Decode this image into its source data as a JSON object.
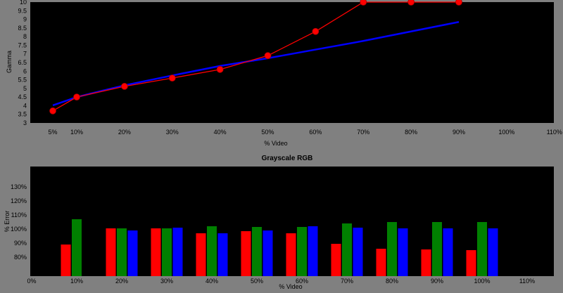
{
  "chart_data": [
    {
      "type": "line",
      "title": "",
      "xlabel": "% Video",
      "ylabel": "Gamma",
      "ylim": [
        3,
        10
      ],
      "yticks": [
        "3",
        "3.5",
        "4",
        "4.5",
        "5",
        "5.5",
        "6",
        "6.5",
        "7",
        "7.5",
        "8",
        "8.5",
        "9",
        "9.5",
        "10"
      ],
      "xtick_labels": [
        "5%",
        "10%",
        "20%",
        "30%",
        "40%",
        "50%",
        "60%",
        "70%",
        "80%",
        "90%",
        "100%",
        "110%"
      ],
      "grid": false,
      "series": [
        {
          "color": "#0000ff",
          "x": [
            5,
            10,
            20,
            30,
            40,
            50,
            60,
            70,
            80,
            90
          ],
          "y": [
            4.02,
            4.5,
            5.18,
            5.75,
            6.3,
            6.75,
            7.25,
            7.75,
            8.3,
            8.85
          ]
        },
        {
          "color": "#ff0000",
          "markers": true,
          "x": [
            5,
            10,
            20,
            30,
            40,
            50,
            60,
            70,
            80,
            90
          ],
          "y": [
            3.7,
            4.5,
            5.12,
            5.6,
            6.1,
            6.9,
            8.3,
            10.0,
            10.0,
            10.0
          ]
        }
      ]
    },
    {
      "type": "bar",
      "title": "Grayscale RGB",
      "xlabel": "% Video",
      "ylabel": "% Error",
      "ylim": [
        80,
        140
      ],
      "yticks": [
        "80%",
        "90%",
        "100%",
        "110%",
        "120%",
        "130%"
      ],
      "xtick_labels": [
        "0%",
        "10%",
        "20%",
        "30%",
        "40%",
        "50%",
        "60%",
        "70%",
        "80%",
        "90%",
        "100%",
        "110%"
      ],
      "categories": [
        "10%",
        "20%",
        "30%",
        "40%",
        "50%",
        "60%",
        "70%",
        "80%",
        "90%",
        "100%"
      ],
      "grid": false,
      "series": [
        {
          "color": "#ff0000",
          "values": [
            89,
            100.5,
            100.5,
            97,
            98.5,
            97,
            89.5,
            86,
            85.5,
            85
          ]
        },
        {
          "color": "#008000",
          "values": [
            107,
            100.5,
            100.5,
            102,
            101.5,
            101.5,
            104,
            105,
            105,
            105
          ]
        },
        {
          "color": "#0000ff",
          "values": [
            null,
            99,
            101,
            97,
            99,
            102,
            101,
            100.5,
            100.5,
            100.5
          ]
        }
      ]
    }
  ]
}
